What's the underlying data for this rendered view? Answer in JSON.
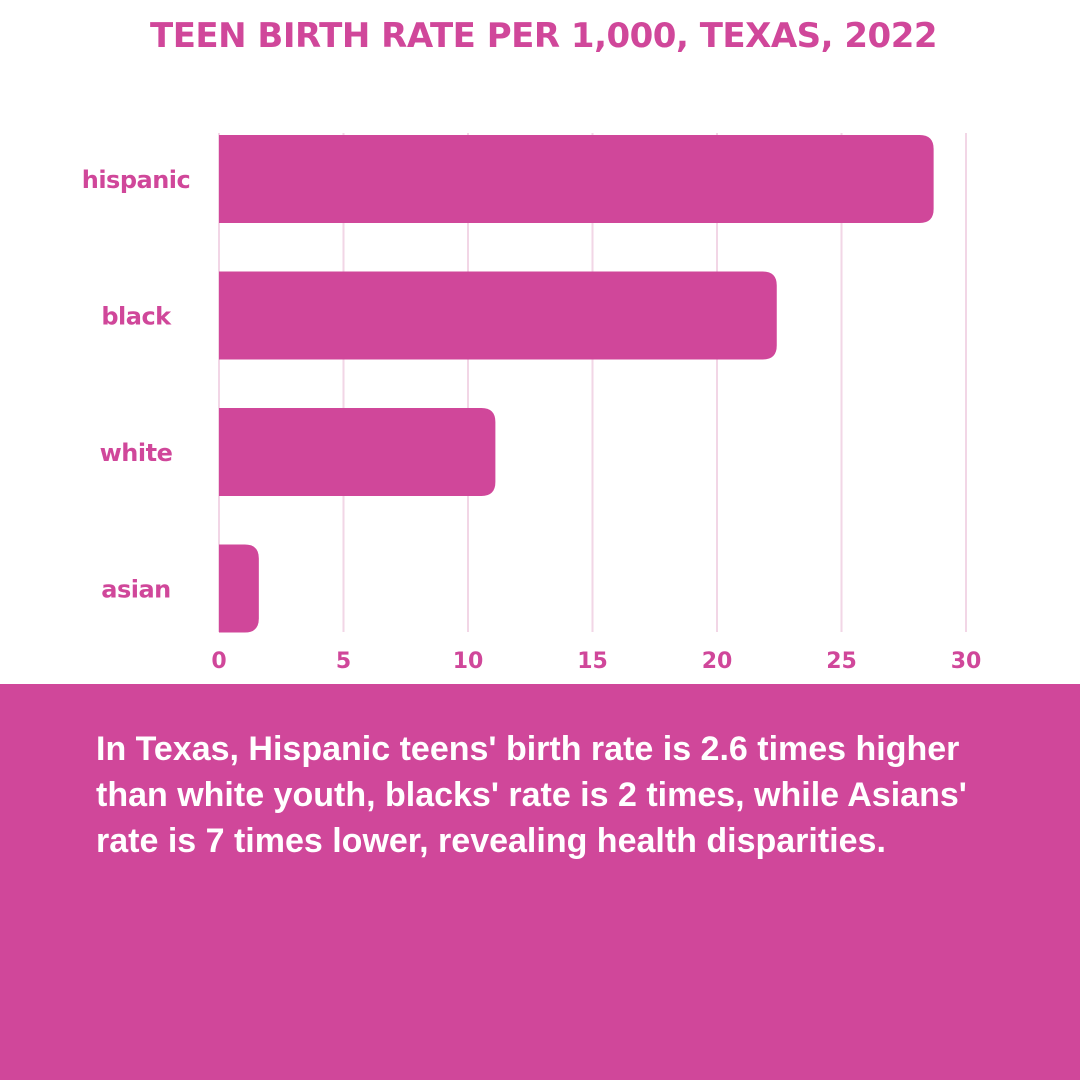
{
  "chart_data": {
    "type": "bar",
    "orientation": "horizontal",
    "title": "TEEN BIRTH RATE PER 1,000, TEXAS, 2022",
    "categories": [
      "hispanic",
      "black",
      "white",
      "asian"
    ],
    "values": [
      28.7,
      22.4,
      11.1,
      1.6
    ],
    "xlim": [
      0,
      30
    ],
    "xticks": [
      "0",
      "5",
      "10",
      "15",
      "20",
      "25",
      "30"
    ],
    "grid": true,
    "colors": {
      "bar": "#d0479a",
      "grid": "#f2d6e6",
      "text": "#d0479a"
    }
  },
  "caption": "In Texas, Hispanic teens' birth rate is 2.6 times higher than white youth, blacks' rate is 2 times, while Asians' rate is 7 times lower, revealing health disparities."
}
